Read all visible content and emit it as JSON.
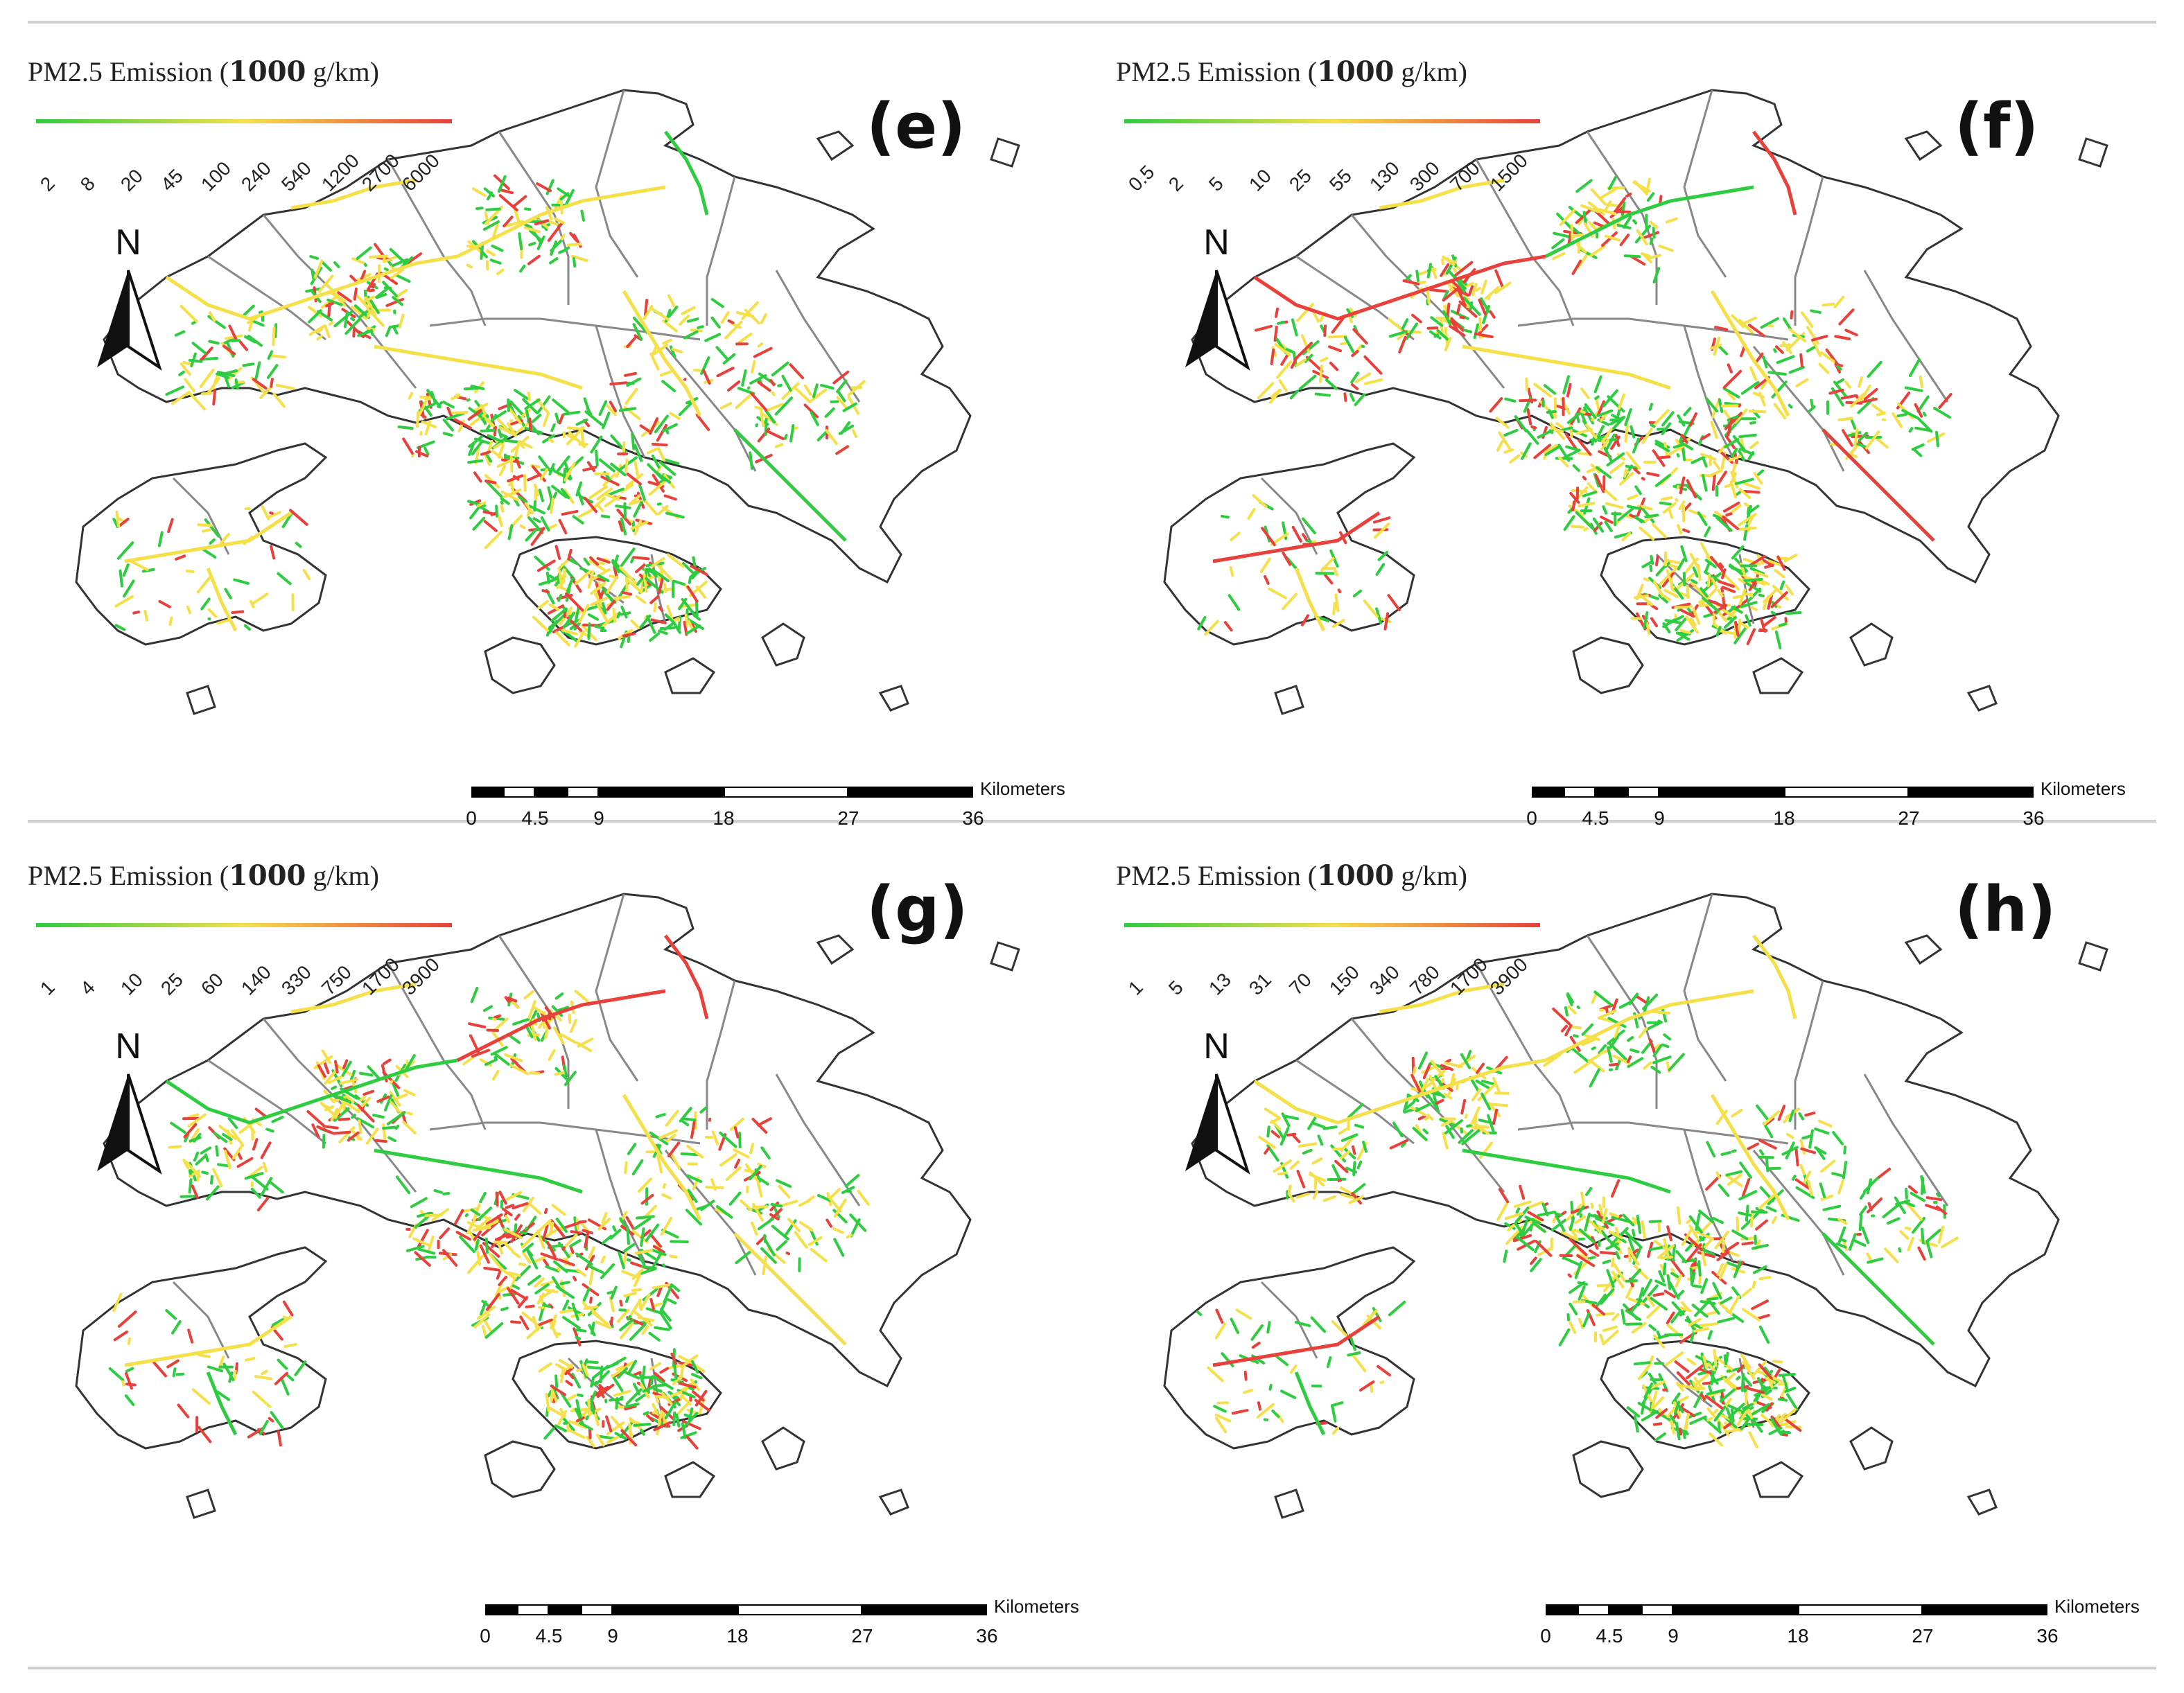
{
  "legend_colors": {
    "green": "#2ecc40",
    "yellow": "#f5e04a",
    "red": "#e8403a",
    "coast": "#333333",
    "district": "#888888"
  },
  "panels": [
    {
      "label": "(e)",
      "legend_title_pre": "PM2.5 Emission (",
      "legend_title_bold": "1000",
      "legend_title_post": " g/km)",
      "ticks": [
        "2",
        "8",
        "20",
        "45",
        "100",
        "240",
        "540",
        "1200",
        "2700",
        "6000"
      ]
    },
    {
      "label": "(f)",
      "legend_title_pre": "PM2.5 Emission (",
      "legend_title_bold": "1000",
      "legend_title_post": "  g/km)",
      "ticks": [
        "0.5",
        "2",
        "5",
        "10",
        "25",
        "55",
        "130",
        "300",
        "700",
        "1500"
      ]
    },
    {
      "label": "(g)",
      "legend_title_pre": "PM2.5 Emission (",
      "legend_title_bold": "1000",
      "legend_title_post": "   g/km)",
      "ticks": [
        "1",
        "4",
        "10",
        "25",
        "60",
        "140",
        "330",
        "750",
        "1700",
        "3900"
      ]
    },
    {
      "label": "(h)",
      "legend_title_pre": "PM2.5 Emission (",
      "legend_title_bold": "1000",
      "legend_title_post": " g/km)",
      "ticks": [
        "1",
        "5",
        "13",
        "31",
        "70",
        "150",
        "340",
        "780",
        "1700",
        "3900"
      ]
    }
  ],
  "north_label": "N",
  "scale_bar": {
    "unit": "Kilometers",
    "labels": [
      "0",
      "4.5",
      "9",
      "18",
      "27",
      "36"
    ]
  }
}
